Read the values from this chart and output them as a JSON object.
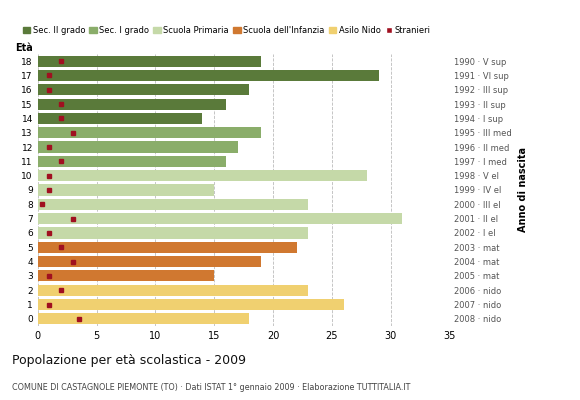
{
  "ages": [
    18,
    17,
    16,
    15,
    14,
    13,
    12,
    11,
    10,
    9,
    8,
    7,
    6,
    5,
    4,
    3,
    2,
    1,
    0
  ],
  "years": [
    "1990 · V sup",
    "1991 · VI sup",
    "1992 · III sup",
    "1993 · II sup",
    "1994 · I sup",
    "1995 · III med",
    "1996 · II med",
    "1997 · I med",
    "1998 · V el",
    "1999 · IV el",
    "2000 · III el",
    "2001 · II el",
    "2002 · I el",
    "2003 · mat",
    "2004 · mat",
    "2005 · mat",
    "2006 · nido",
    "2007 · nido",
    "2008 · nido"
  ],
  "bar_values": [
    19,
    29,
    18,
    16,
    14,
    19,
    17,
    16,
    28,
    15,
    23,
    31,
    23,
    22,
    19,
    15,
    23,
    26,
    18
  ],
  "stranieri": [
    2,
    1,
    1,
    2,
    2,
    3,
    1,
    2,
    1,
    1,
    0.4,
    3,
    1,
    2,
    3,
    1,
    2,
    1,
    3.5
  ],
  "categories": {
    "Sec. II grado": [
      18,
      17,
      16,
      15,
      14
    ],
    "Sec. I grado": [
      13,
      12,
      11
    ],
    "Scuola Primaria": [
      10,
      9,
      8,
      7,
      6
    ],
    "Scuola dell'Infanzia": [
      5,
      4,
      3
    ],
    "Asilo Nido": [
      2,
      1,
      0
    ]
  },
  "colors": {
    "Sec. II grado": "#5a7a3a",
    "Sec. I grado": "#8aad6a",
    "Scuola Primaria": "#c5d9a8",
    "Scuola dell'Infanzia": "#d07830",
    "Asilo Nido": "#f0d070",
    "Stranieri": "#a01020"
  },
  "title": "Popolazione per età scolastica - 2009",
  "subtitle": "COMUNE DI CASTAGNOLE PIEMONTE (TO) · Dati ISTAT 1° gennaio 2009 · Elaborazione TUTTITALIA.IT",
  "xlabel_eta": "Età",
  "xlabel_anno": "Anno di nascita",
  "xlim": [
    0,
    35
  ],
  "background_color": "#ffffff"
}
